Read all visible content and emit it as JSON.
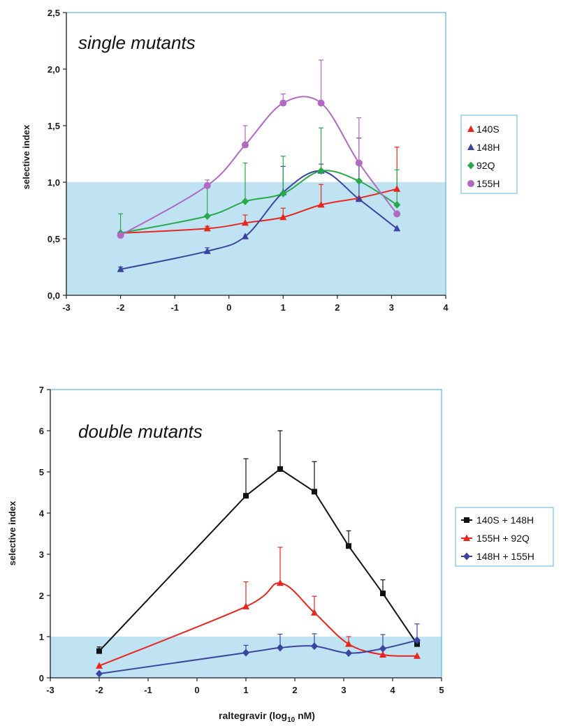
{
  "chart_data": [
    {
      "type": "line",
      "title": "single mutants",
      "ylabel": "selective index",
      "xlabel": "",
      "xlim": [
        -3,
        4
      ],
      "ylim": [
        0,
        2.5
      ],
      "xticks": [
        "-3",
        "-2",
        "-1",
        "0",
        "1",
        "2",
        "3",
        "4"
      ],
      "yticks": [
        "0,0",
        "0,5",
        "1,0",
        "1,5",
        "2,0",
        "2,5"
      ],
      "shaded_region": {
        "y_from": 0,
        "y_to": 1.0,
        "color": "#bfe3f3"
      },
      "legend_position": "right",
      "series": [
        {
          "name": "140S",
          "color": "#e8251f",
          "marker": "triangle",
          "x": [
            -2,
            -0.4,
            0.3,
            1,
            1.7,
            2.4,
            3.1
          ],
          "y": [
            0.55,
            0.59,
            0.64,
            0.69,
            0.8,
            0.86,
            0.94
          ],
          "err": [
            0.0,
            0.02,
            0.07,
            0.08,
            0.18,
            0.0,
            0.37
          ]
        },
        {
          "name": "148H",
          "color": "#3b45a0",
          "marker": "triangle",
          "x": [
            -2,
            -0.4,
            0.3,
            1,
            1.7,
            2.4,
            3.1
          ],
          "y": [
            0.23,
            0.39,
            0.52,
            0.91,
            1.1,
            0.85,
            0.59
          ],
          "err": [
            0.02,
            0.03,
            0.0,
            0.23,
            0.06,
            0.54,
            0.0
          ]
        },
        {
          "name": "92Q",
          "color": "#29a84a",
          "marker": "diamond",
          "x": [
            -2,
            -0.4,
            0.3,
            1,
            1.7,
            2.4,
            3.1
          ],
          "y": [
            0.55,
            0.7,
            0.83,
            0.9,
            1.1,
            1.01,
            0.8
          ],
          "err": [
            0.17,
            0.26,
            0.34,
            0.33,
            0.38,
            0.0,
            0.31
          ]
        },
        {
          "name": "155H",
          "color": "#b06ac0",
          "marker": "circle",
          "x": [
            -2,
            -0.4,
            0.3,
            1,
            1.7,
            2.4,
            3.1
          ],
          "y": [
            0.53,
            0.97,
            1.33,
            1.7,
            1.7,
            1.17,
            0.72
          ],
          "err": [
            0.0,
            0.05,
            0.17,
            0.08,
            0.38,
            0.4,
            0.0
          ]
        }
      ]
    },
    {
      "type": "line",
      "title": "double mutants",
      "ylabel": "selective index",
      "xlabel": "raltegravir (log",
      "xlabel_sub": "10",
      "xlabel_tail": " nM)",
      "xlim": [
        -3,
        5
      ],
      "ylim": [
        0,
        7
      ],
      "xticks": [
        "-3",
        "-2",
        "-1",
        "0",
        "1",
        "2",
        "3",
        "4",
        "5"
      ],
      "yticks": [
        "0",
        "1",
        "2",
        "3",
        "4",
        "5",
        "6",
        "7"
      ],
      "shaded_region": {
        "y_from": 0,
        "y_to": 1.0,
        "color": "#bfe3f3"
      },
      "legend_position": "right",
      "series": [
        {
          "name": "140S + 148H",
          "color": "#111111",
          "marker": "square",
          "x": [
            -2,
            1,
            1.7,
            2.4,
            3.1,
            3.8,
            4.5
          ],
          "y": [
            0.65,
            4.42,
            5.07,
            4.52,
            3.2,
            2.05,
            0.82
          ],
          "err": [
            0.1,
            0.9,
            0.93,
            0.73,
            0.37,
            0.33,
            0.0
          ]
        },
        {
          "name": "155H + 92Q",
          "color": "#e8251f",
          "marker": "triangle",
          "x": [
            -2,
            1,
            1.7,
            2.4,
            3.1,
            3.8,
            4.5
          ],
          "y": [
            0.29,
            1.73,
            2.3,
            1.58,
            0.82,
            0.56,
            0.53
          ],
          "err": [
            0.0,
            0.6,
            0.87,
            0.4,
            0.18,
            0.0,
            0.0
          ]
        },
        {
          "name": "148H + 155H",
          "color": "#3b45a0",
          "marker": "diamond",
          "x": [
            -2,
            1,
            1.7,
            2.4,
            3.1,
            3.8,
            4.5
          ],
          "y": [
            0.1,
            0.61,
            0.73,
            0.77,
            0.6,
            0.71,
            0.91
          ],
          "err": [
            0.0,
            0.18,
            0.33,
            0.3,
            0.0,
            0.34,
            0.4
          ]
        }
      ]
    }
  ]
}
